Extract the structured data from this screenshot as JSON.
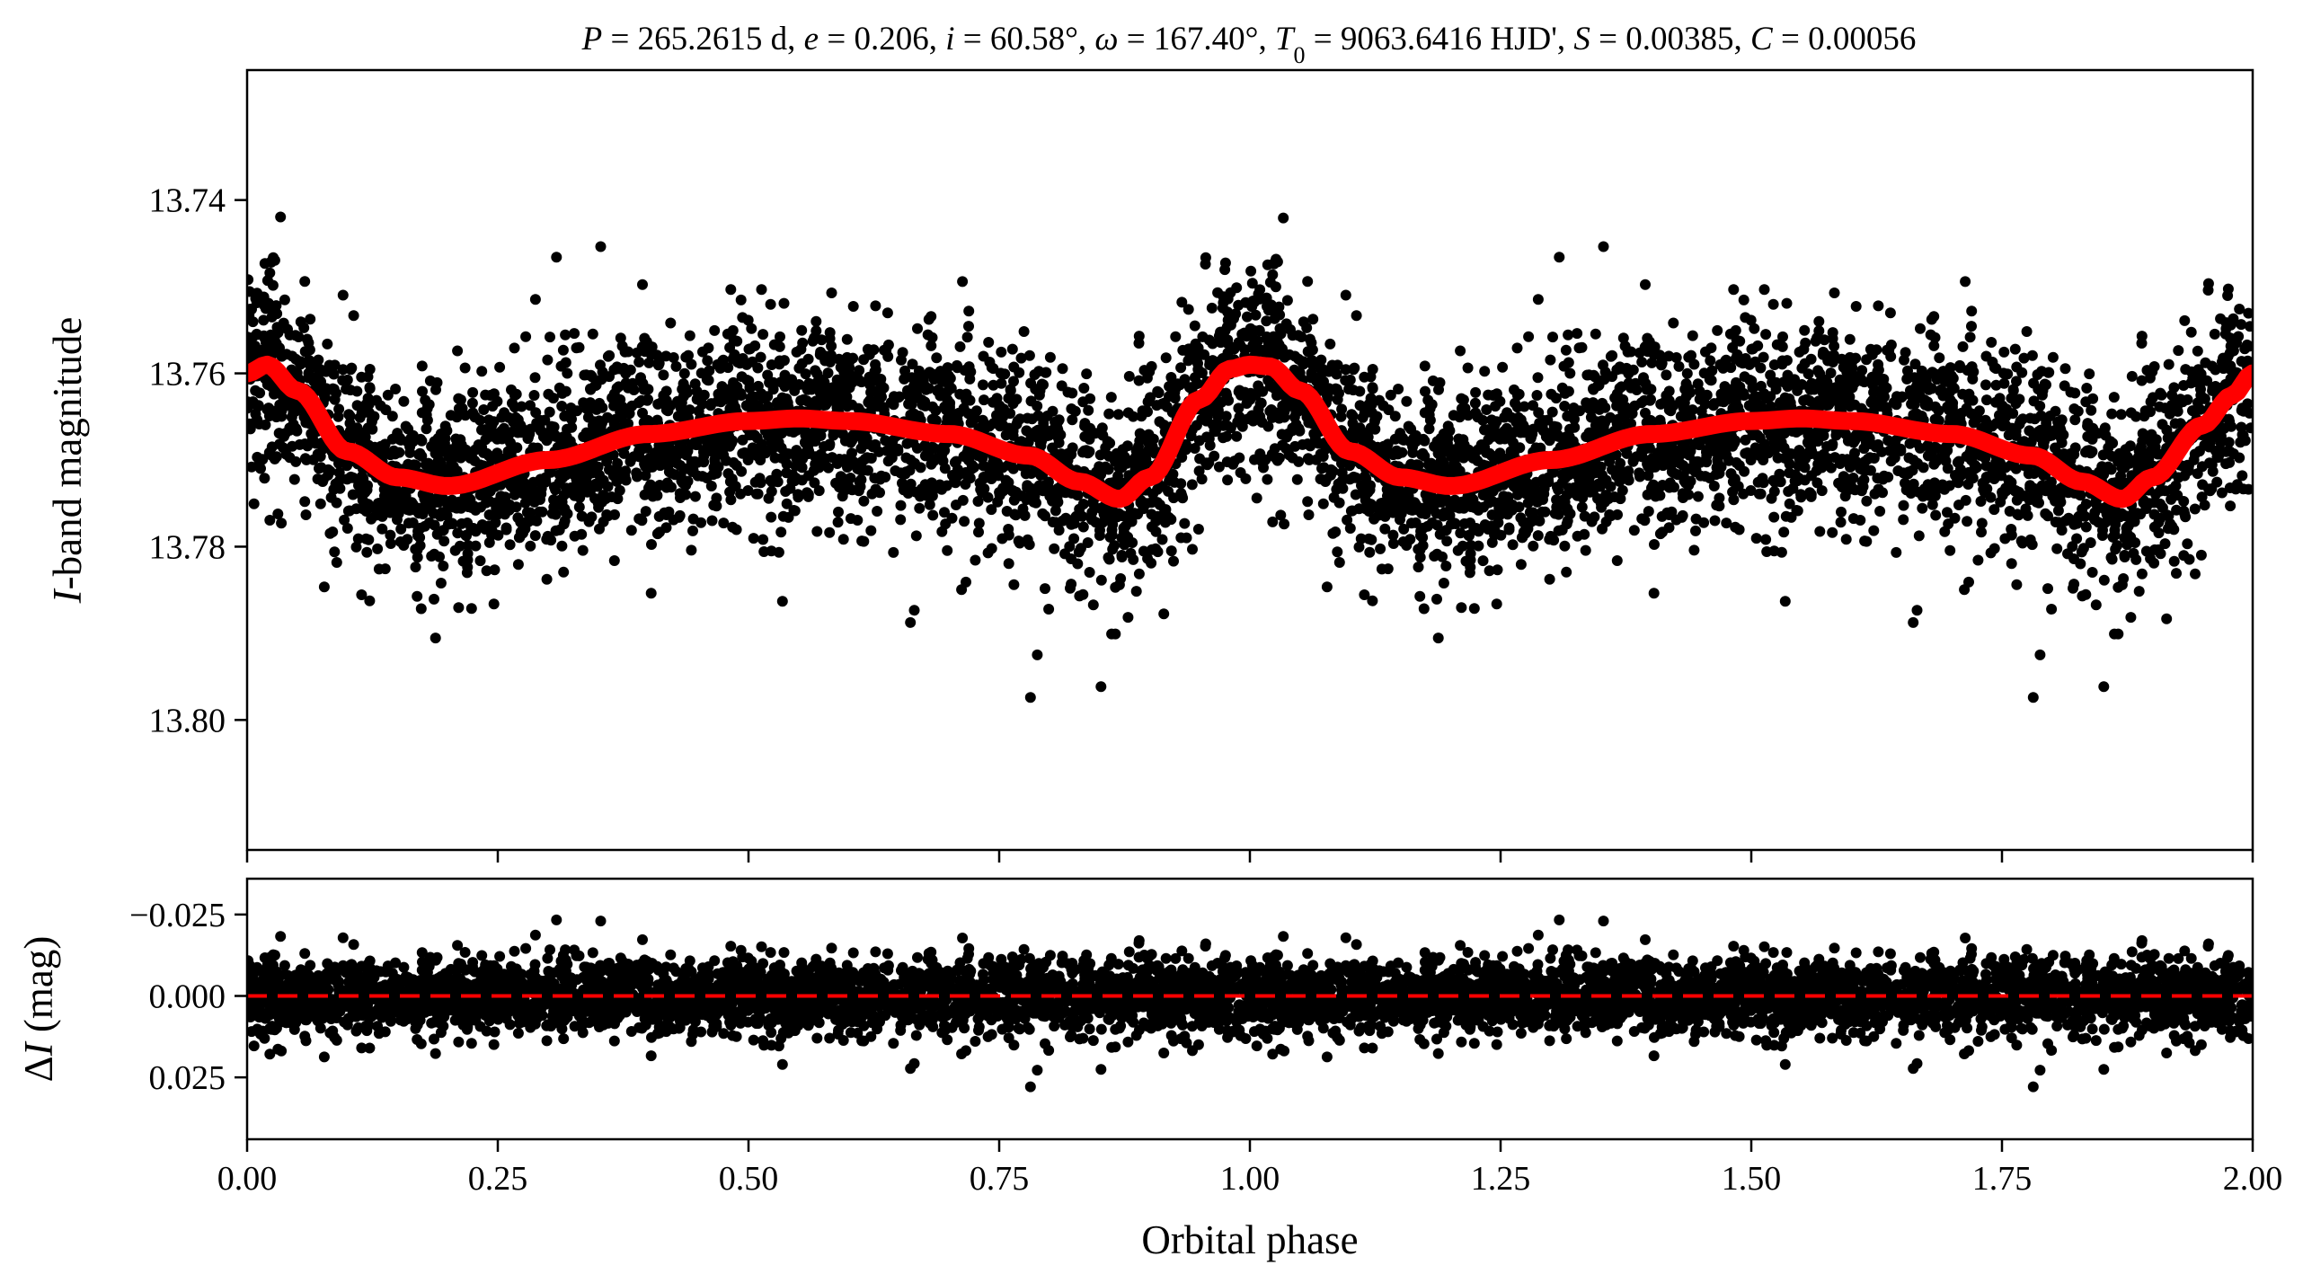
{
  "chart_data": [
    {
      "type": "scatter",
      "panel": "top",
      "title": "P = 265.2615 d, e = 0.206, i = 60.58°, ω = 167.40°, T0 = 9063.6416 HJD', S = 0.00385, C = 0.00056",
      "title_parts": {
        "P": "265.2615",
        "P_unit": "d",
        "e": "0.206",
        "i": "60.58°",
        "omega": "167.40°",
        "T0": "9063.6416",
        "T0_unit": "HJD'",
        "S": "0.00385",
        "C": "0.00056"
      },
      "ylabel_italic": "I",
      "ylabel_rest": "-band magnitude",
      "xlim": [
        0.0,
        2.0
      ],
      "ylim": [
        13.815,
        13.725
      ],
      "y_inverted": true,
      "y_ticks": [
        13.74,
        13.76,
        13.78,
        13.8
      ],
      "y_tick_labels": [
        "13.74",
        "13.76",
        "13.78",
        "13.80"
      ],
      "x_ticks": [
        0.0,
        0.25,
        0.5,
        0.75,
        1.0,
        1.25,
        1.5,
        1.75,
        2.0
      ],
      "x_tick_labels_shown": false,
      "points_color": "#000000",
      "points_scatter_sigma_mag": 0.0055,
      "model_color": "#ff0000",
      "model_curve": {
        "x": [
          0.0,
          0.02,
          0.05,
          0.1,
          0.15,
          0.2,
          0.3,
          0.4,
          0.5,
          0.55,
          0.6,
          0.7,
          0.78,
          0.83,
          0.87,
          0.9,
          0.95,
          0.98,
          1.0,
          1.02,
          1.05,
          1.1,
          1.15,
          1.2,
          1.3,
          1.4,
          1.5,
          1.55,
          1.6,
          1.7,
          1.78,
          1.83,
          1.87,
          1.9,
          1.95,
          1.98,
          2.0
        ],
        "y": [
          13.76,
          13.759,
          13.762,
          13.769,
          13.772,
          13.773,
          13.77,
          13.767,
          13.7655,
          13.7652,
          13.7655,
          13.767,
          13.7695,
          13.7725,
          13.7745,
          13.772,
          13.763,
          13.7595,
          13.759,
          13.7592,
          13.762,
          13.769,
          13.772,
          13.773,
          13.77,
          13.767,
          13.7655,
          13.7652,
          13.7655,
          13.767,
          13.7695,
          13.7725,
          13.7745,
          13.772,
          13.766,
          13.7625,
          13.76
        ]
      }
    },
    {
      "type": "scatter",
      "panel": "bottom",
      "ylabel_prefix": "Δ",
      "ylabel_italic": "I",
      "ylabel_rest": " (mag)",
      "xlabel": "Orbital phase",
      "xlim": [
        0.0,
        2.0
      ],
      "ylim": [
        0.044,
        -0.036
      ],
      "y_inverted": true,
      "y_ticks": [
        -0.025,
        0.0,
        0.025
      ],
      "y_tick_labels": [
        "−0.025",
        "0.000",
        "0.025"
      ],
      "x_ticks": [
        0.0,
        0.25,
        0.5,
        0.75,
        1.0,
        1.25,
        1.5,
        1.75,
        2.0
      ],
      "x_tick_labels": [
        "0.00",
        "0.25",
        "0.50",
        "0.75",
        "1.00",
        "1.25",
        "1.50",
        "1.75",
        "2.00"
      ],
      "points_color": "#000000",
      "points_scatter_sigma_mag": 0.0055,
      "zero_line": {
        "y": 0.0,
        "color": "#ff0000",
        "style": "dashed"
      }
    }
  ]
}
